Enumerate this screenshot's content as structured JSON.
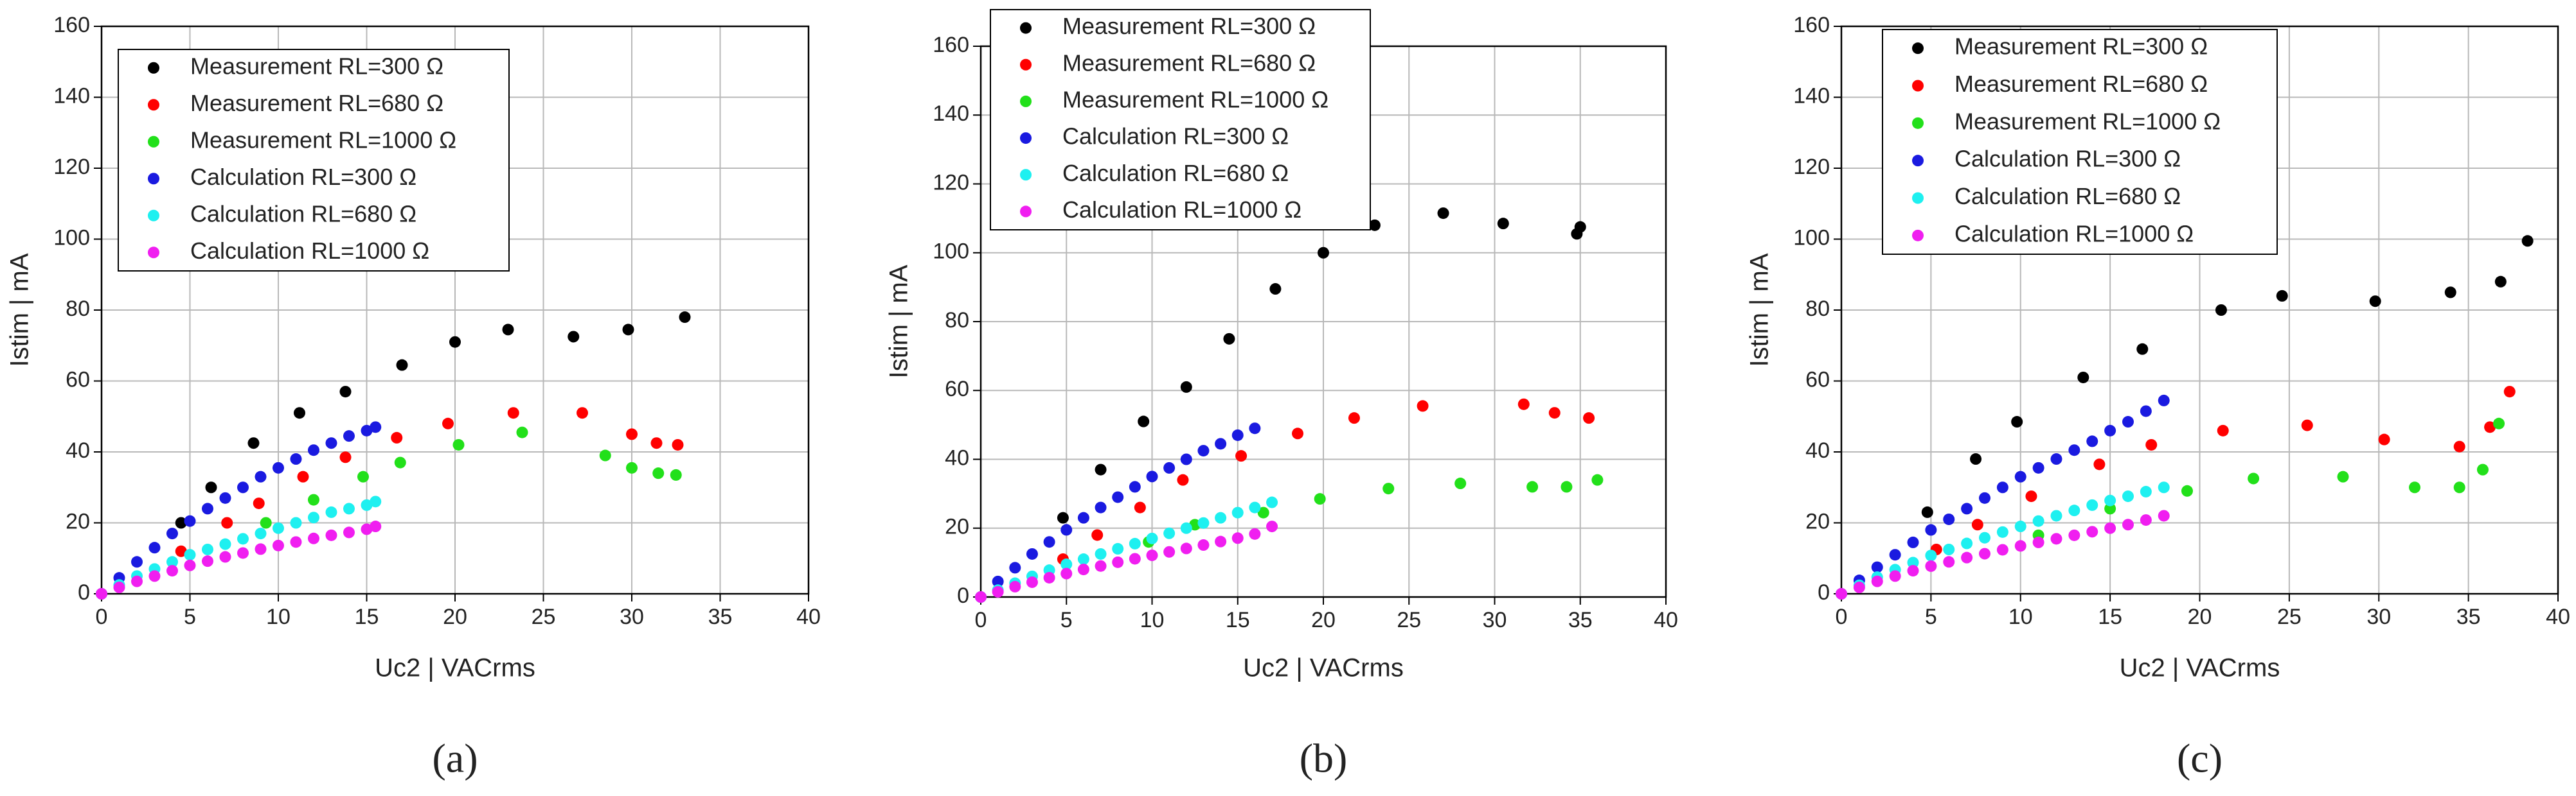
{
  "chart_data": [
    {
      "type": "scatter",
      "caption": "(a)",
      "xlabel": "Uc2 | VACrms",
      "ylabel": "Istim | mA",
      "xlim": [
        0,
        40
      ],
      "ylim": [
        0,
        160
      ],
      "xticks": [
        0,
        5,
        10,
        15,
        20,
        25,
        30,
        35,
        40
      ],
      "yticks": [
        0,
        20,
        40,
        60,
        80,
        100,
        120,
        140,
        160
      ],
      "grid": true,
      "series": [
        {
          "name": "Measurement RL=300 Ω",
          "color": "#000000",
          "x": [
            4.5,
            6.2,
            8.6,
            11.2,
            13.8,
            17,
            20,
            23,
            26.7,
            29.8,
            33
          ],
          "values": [
            20,
            30,
            42.5,
            51,
            57,
            64.5,
            71,
            74.5,
            72.5,
            74.5,
            78
          ]
        },
        {
          "name": "Measurement RL=680 Ω",
          "color": "#ff0000",
          "x": [
            4.5,
            7.1,
            8.9,
            11.4,
            13.8,
            16.7,
            19.6,
            23.3,
            27.2,
            30,
            31.4,
            32.6
          ],
          "values": [
            12,
            20,
            25.5,
            33,
            38.5,
            44,
            48,
            51,
            51,
            45,
            42.5,
            42
          ]
        },
        {
          "name": "Measurement RL=1000 Ω",
          "color": "#22e01a",
          "x": [
            9.3,
            12,
            14.8,
            16.9,
            20.2,
            23.8,
            28.5,
            30,
            31.5,
            32.5
          ],
          "values": [
            20,
            26.5,
            33,
            37,
            42,
            45.5,
            39,
            35.5,
            34,
            33.5
          ]
        },
        {
          "name": "Calculation RL=300 Ω",
          "color": "#1a1ae0",
          "x": [
            0,
            1,
            2,
            3,
            4,
            5,
            6,
            7,
            8,
            9,
            10,
            11,
            12,
            13,
            14,
            15,
            15.5
          ],
          "values": [
            0,
            4.5,
            9,
            13,
            17,
            20.5,
            24,
            27,
            30,
            33,
            35.5,
            38,
            40.5,
            42.5,
            44.5,
            46,
            47
          ]
        },
        {
          "name": "Calculation RL=680 Ω",
          "color": "#1ef0f0",
          "x": [
            0,
            1,
            2,
            3,
            4,
            5,
            6,
            7,
            8,
            9,
            10,
            11,
            12,
            13,
            14,
            15,
            15.5
          ],
          "values": [
            0,
            2.5,
            5,
            7,
            9,
            11,
            12.5,
            14,
            15.5,
            17,
            18.5,
            20,
            21.5,
            23,
            24,
            25,
            26
          ]
        },
        {
          "name": "Calculation RL=1000 Ω",
          "color": "#f01ef0",
          "x": [
            0,
            1,
            2,
            3,
            4,
            5,
            6,
            7,
            8,
            9,
            10,
            11,
            12,
            13,
            14,
            15,
            15.5
          ],
          "values": [
            0,
            1.8,
            3.5,
            5,
            6.5,
            8,
            9.2,
            10.4,
            11.5,
            12.6,
            13.6,
            14.6,
            15.6,
            16.5,
            17.3,
            18.2,
            19
          ]
        }
      ]
    },
    {
      "type": "scatter",
      "caption": "(b)",
      "xlabel": "Uc2 | VACrms",
      "ylabel": "Istim | mA",
      "xlim": [
        0,
        40
      ],
      "ylim": [
        0,
        160
      ],
      "xticks": [
        0,
        5,
        10,
        15,
        20,
        25,
        30,
        35,
        40
      ],
      "yticks": [
        0,
        20,
        40,
        60,
        80,
        100,
        120,
        140,
        160
      ],
      "grid": true,
      "series": [
        {
          "name": "Measurement RL=300 Ω",
          "color": "#000000",
          "x": [
            4.8,
            7,
            9.5,
            12,
            14.5,
            17.2,
            20,
            23,
            27,
            30.5,
            34.8,
            35
          ],
          "values": [
            23,
            37,
            51,
            61,
            75,
            89.5,
            100,
            108,
            111.5,
            108.5,
            105.5,
            107.5
          ]
        },
        {
          "name": "Measurement RL=680 Ω",
          "color": "#ff0000",
          "x": [
            4.8,
            6.8,
            9.3,
            11.8,
            15.2,
            18.5,
            21.8,
            25.8,
            31.7,
            33.5,
            35.5
          ],
          "values": [
            11,
            18,
            26,
            34,
            41,
            47.5,
            52,
            55.5,
            56,
            53.5,
            52
          ]
        },
        {
          "name": "Measurement RL=1000 Ω",
          "color": "#22e01a",
          "x": [
            9.8,
            12.5,
            16.5,
            19.8,
            23.8,
            28,
            32.2,
            34.2,
            36
          ],
          "values": [
            16,
            21,
            24.5,
            28.5,
            31.5,
            33,
            32,
            32,
            34
          ]
        },
        {
          "name": "Calculation RL=300 Ω",
          "color": "#1a1ae0",
          "x": [
            0,
            1,
            2,
            3,
            4,
            5,
            6,
            7,
            8,
            9,
            10,
            11,
            12,
            13,
            14,
            15,
            16
          ],
          "values": [
            0,
            4.5,
            8.5,
            12.5,
            16,
            19.5,
            23,
            26,
            29,
            32,
            35,
            37.5,
            40,
            42.5,
            44.5,
            47,
            49
          ]
        },
        {
          "name": "Calculation RL=680 Ω",
          "color": "#1ef0f0",
          "x": [
            0,
            1,
            2,
            3,
            4,
            5,
            6,
            7,
            8,
            9,
            10,
            11,
            12,
            13,
            14,
            15,
            16,
            17
          ],
          "values": [
            0,
            2,
            4,
            6,
            7.8,
            9.5,
            11,
            12.5,
            14,
            15.5,
            17,
            18.5,
            20,
            21.5,
            23,
            24.5,
            26,
            27.5
          ]
        },
        {
          "name": "Calculation RL=1000 Ω",
          "color": "#f01ef0",
          "x": [
            0,
            1,
            2,
            3,
            4,
            5,
            6,
            7,
            8,
            9,
            10,
            11,
            12,
            13,
            14,
            15,
            16,
            17
          ],
          "values": [
            0,
            1.5,
            3,
            4.3,
            5.6,
            6.8,
            8,
            9,
            10.1,
            11.1,
            12.1,
            13.1,
            14.1,
            15.1,
            16.1,
            17.1,
            18.3,
            20.5
          ]
        }
      ]
    },
    {
      "type": "scatter",
      "caption": "(c)",
      "xlabel": "Uc2 | VACrms",
      "ylabel": "Istim | mA",
      "xlim": [
        0,
        40
      ],
      "ylim": [
        0,
        160
      ],
      "xticks": [
        0,
        5,
        10,
        15,
        20,
        25,
        30,
        35,
        40
      ],
      "yticks": [
        0,
        20,
        40,
        60,
        80,
        100,
        120,
        140,
        160
      ],
      "grid": true,
      "series": [
        {
          "name": "Measurement RL=300 Ω",
          "color": "#000000",
          "x": [
            4.8,
            7.5,
            9.8,
            13.5,
            16.8,
            21.2,
            24.6,
            29.8,
            34,
            36.8,
            38.3
          ],
          "values": [
            23,
            38,
            48.5,
            61,
            69,
            80,
            84,
            82.5,
            85,
            88,
            99.5
          ]
        },
        {
          "name": "Measurement RL=680 Ω",
          "color": "#ff0000",
          "x": [
            5.3,
            7.6,
            10.6,
            14.4,
            17.3,
            21.3,
            26,
            30.3,
            34.5,
            36.2,
            37.3
          ],
          "values": [
            12.5,
            19.5,
            27.5,
            36.5,
            42,
            46,
            47.5,
            43.5,
            41.5,
            47,
            57
          ]
        },
        {
          "name": "Measurement RL=1000 Ω",
          "color": "#22e01a",
          "x": [
            11,
            15,
            19.3,
            23,
            28,
            32,
            34.5,
            35.8,
            36.7
          ],
          "values": [
            16.5,
            24,
            29,
            32.5,
            33,
            30,
            30,
            35,
            48
          ]
        },
        {
          "name": "Calculation RL=300 Ω",
          "color": "#1a1ae0",
          "x": [
            0,
            1,
            2,
            3,
            4,
            5,
            6,
            7,
            8,
            9,
            10,
            11,
            12,
            13,
            14,
            15,
            16,
            17,
            18
          ],
          "values": [
            0,
            3.8,
            7.5,
            11,
            14.5,
            18,
            21,
            24,
            27,
            30,
            33,
            35.5,
            38,
            40.5,
            43,
            46,
            48.5,
            51.5,
            54.5
          ]
        },
        {
          "name": "Calculation RL=680 Ω",
          "color": "#1ef0f0",
          "x": [
            0,
            1,
            2,
            3,
            4,
            5,
            6,
            7,
            8,
            9,
            10,
            11,
            12,
            13,
            14,
            15,
            16,
            17,
            18
          ],
          "values": [
            0,
            2.4,
            4.7,
            6.8,
            8.8,
            10.8,
            12.5,
            14.2,
            15.8,
            17.4,
            19,
            20.5,
            22,
            23.5,
            25,
            26.3,
            27.5,
            28.8,
            30
          ]
        },
        {
          "name": "Calculation RL=1000 Ω",
          "color": "#f01ef0",
          "x": [
            0,
            1,
            2,
            3,
            4,
            5,
            6,
            7,
            8,
            9,
            10,
            11,
            12,
            13,
            14,
            15,
            16,
            17,
            18
          ],
          "values": [
            0,
            1.8,
            3.5,
            5,
            6.5,
            7.8,
            9,
            10.2,
            11.3,
            12.4,
            13.5,
            14.5,
            15.5,
            16.5,
            17.5,
            18.5,
            19.5,
            20.8,
            22
          ]
        }
      ]
    }
  ]
}
